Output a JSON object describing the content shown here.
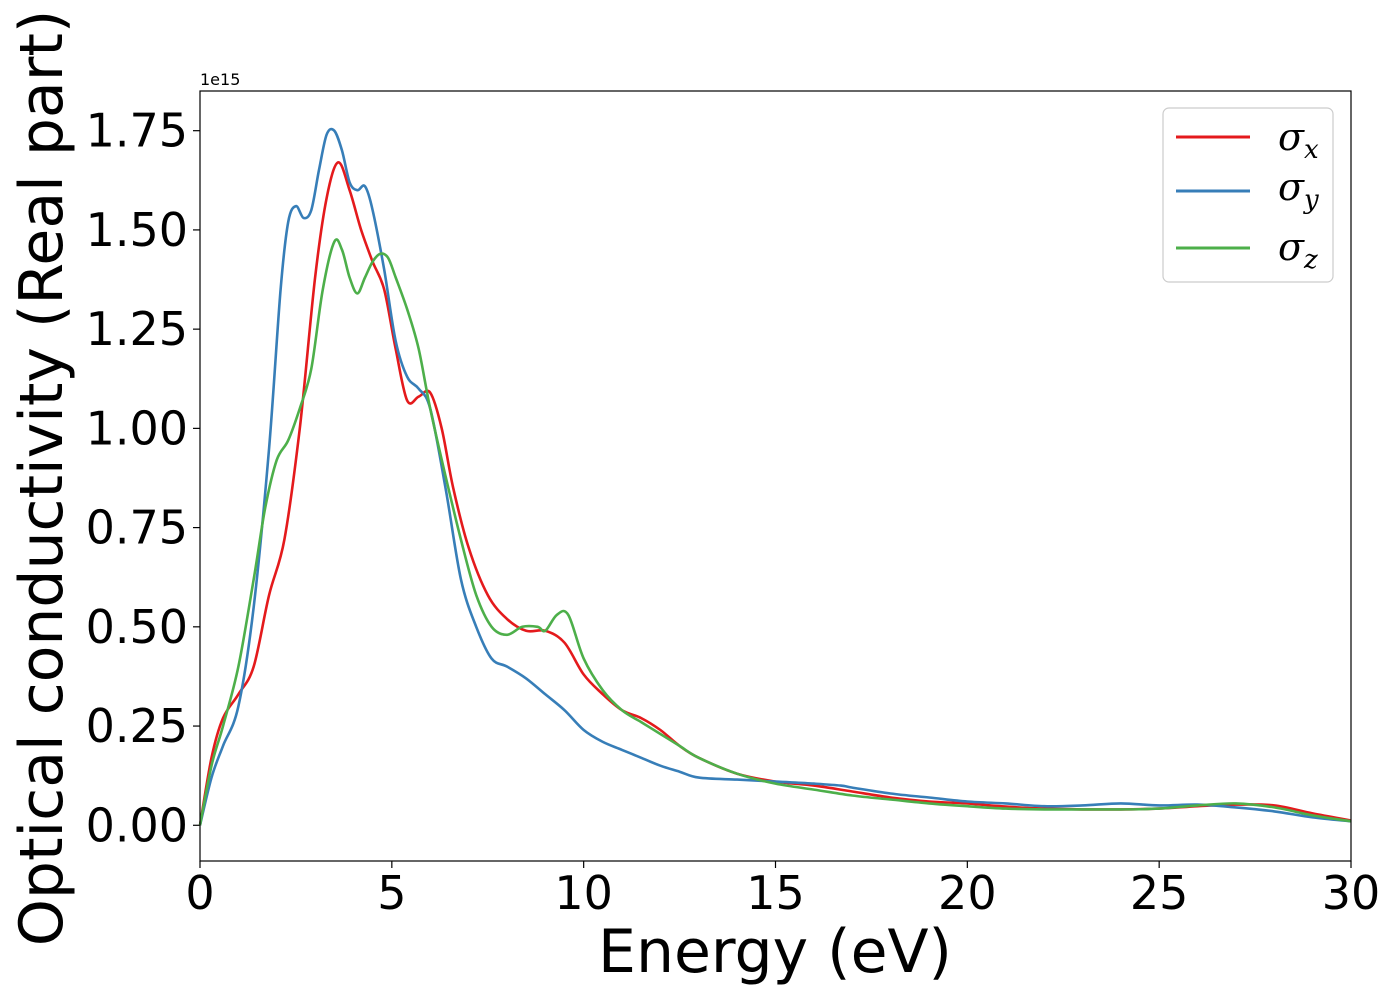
{
  "chart_data": {
    "type": "line",
    "title": "",
    "xlabel": "Energy (eV)",
    "ylabel": "Optical conductivity (Real part)",
    "y_offset_label": "1e15",
    "xlim": [
      0,
      30
    ],
    "ylim": [
      -0.09,
      1.85
    ],
    "xticks": [
      0,
      5,
      10,
      15,
      20,
      25,
      30
    ],
    "xtick_labels": [
      "0",
      "5",
      "10",
      "15",
      "20",
      "25",
      "30"
    ],
    "yticks": [
      0.0,
      0.25,
      0.5,
      0.75,
      1.0,
      1.25,
      1.5,
      1.75
    ],
    "ytick_labels": [
      "0.00",
      "0.25",
      "0.50",
      "0.75",
      "1.00",
      "1.25",
      "1.50",
      "1.75"
    ],
    "grid": false,
    "legend_position": "top-right",
    "series": [
      {
        "name": "σ",
        "subscript": "x",
        "color": "#e41a1c",
        "x": [
          0,
          0.3,
          0.6,
          1.0,
          1.4,
          1.8,
          2.2,
          2.6,
          3.0,
          3.3,
          3.6,
          3.9,
          4.2,
          4.5,
          4.8,
          5.1,
          5.4,
          5.7,
          6.0,
          6.3,
          6.6,
          7.0,
          7.5,
          8.0,
          8.5,
          9.0,
          9.5,
          10.0,
          10.5,
          11.0,
          11.5,
          12.0,
          12.5,
          13.0,
          14.0,
          15.0,
          16.0,
          17.0,
          18.0,
          19.0,
          20.0,
          21.0,
          22.0,
          23.0,
          24.0,
          25.0,
          26.0,
          27.0,
          28.0,
          29.0,
          30.0
        ],
        "y": [
          0.0,
          0.17,
          0.27,
          0.33,
          0.4,
          0.58,
          0.72,
          1.0,
          1.38,
          1.58,
          1.67,
          1.6,
          1.5,
          1.42,
          1.35,
          1.2,
          1.07,
          1.08,
          1.09,
          1.0,
          0.85,
          0.7,
          0.58,
          0.52,
          0.49,
          0.49,
          0.46,
          0.38,
          0.33,
          0.29,
          0.27,
          0.24,
          0.2,
          0.17,
          0.13,
          0.11,
          0.1,
          0.085,
          0.07,
          0.06,
          0.055,
          0.047,
          0.042,
          0.04,
          0.04,
          0.042,
          0.048,
          0.052,
          0.05,
          0.03,
          0.012
        ]
      },
      {
        "name": "σ",
        "subscript": "y",
        "color": "#377eb8",
        "x": [
          0,
          0.3,
          0.6,
          1.0,
          1.4,
          1.8,
          2.1,
          2.3,
          2.5,
          2.7,
          2.9,
          3.1,
          3.3,
          3.5,
          3.7,
          3.9,
          4.1,
          4.3,
          4.5,
          4.8,
          5.1,
          5.4,
          5.7,
          6.0,
          6.4,
          6.8,
          7.2,
          7.6,
          8.0,
          8.5,
          9.0,
          9.5,
          10.0,
          10.5,
          11.0,
          11.5,
          12.0,
          12.5,
          13.0,
          14.0,
          15.0,
          16.0,
          16.7,
          17.0,
          18.0,
          19.0,
          20.0,
          21.0,
          22.0,
          23.0,
          24.0,
          25.0,
          26.0,
          27.0,
          28.0,
          29.0,
          30.0
        ],
        "y": [
          0.0,
          0.12,
          0.2,
          0.3,
          0.55,
          0.95,
          1.35,
          1.52,
          1.56,
          1.53,
          1.55,
          1.65,
          1.74,
          1.75,
          1.7,
          1.62,
          1.6,
          1.61,
          1.55,
          1.4,
          1.22,
          1.13,
          1.1,
          1.05,
          0.85,
          0.62,
          0.5,
          0.42,
          0.4,
          0.37,
          0.33,
          0.29,
          0.24,
          0.21,
          0.19,
          0.17,
          0.15,
          0.135,
          0.12,
          0.115,
          0.11,
          0.105,
          0.1,
          0.095,
          0.08,
          0.07,
          0.06,
          0.055,
          0.048,
          0.05,
          0.055,
          0.05,
          0.052,
          0.045,
          0.035,
          0.02,
          0.01
        ]
      },
      {
        "name": "σ",
        "subscript": "z",
        "color": "#4daf4a",
        "x": [
          0,
          0.3,
          0.6,
          1.0,
          1.4,
          1.7,
          2.0,
          2.3,
          2.6,
          2.9,
          3.2,
          3.5,
          3.7,
          3.9,
          4.1,
          4.3,
          4.5,
          4.7,
          4.9,
          5.1,
          5.4,
          5.7,
          6.0,
          6.4,
          6.8,
          7.2,
          7.6,
          8.0,
          8.4,
          8.8,
          9.0,
          9.3,
          9.6,
          10.0,
          10.5,
          11.0,
          11.5,
          12.0,
          12.5,
          13.0,
          14.0,
          15.0,
          16.0,
          17.0,
          18.0,
          19.0,
          20.0,
          21.0,
          22.0,
          23.0,
          24.0,
          25.0,
          26.0,
          27.0,
          28.0,
          29.0,
          30.0
        ],
        "y": [
          0.0,
          0.15,
          0.25,
          0.4,
          0.62,
          0.8,
          0.92,
          0.97,
          1.05,
          1.15,
          1.35,
          1.47,
          1.45,
          1.38,
          1.34,
          1.38,
          1.42,
          1.44,
          1.43,
          1.38,
          1.3,
          1.2,
          1.05,
          0.88,
          0.72,
          0.58,
          0.5,
          0.48,
          0.5,
          0.5,
          0.49,
          0.53,
          0.53,
          0.42,
          0.34,
          0.29,
          0.26,
          0.23,
          0.2,
          0.17,
          0.13,
          0.105,
          0.09,
          0.075,
          0.065,
          0.055,
          0.048,
          0.042,
          0.04,
          0.04,
          0.04,
          0.042,
          0.05,
          0.055,
          0.045,
          0.025,
          0.01
        ]
      }
    ]
  }
}
